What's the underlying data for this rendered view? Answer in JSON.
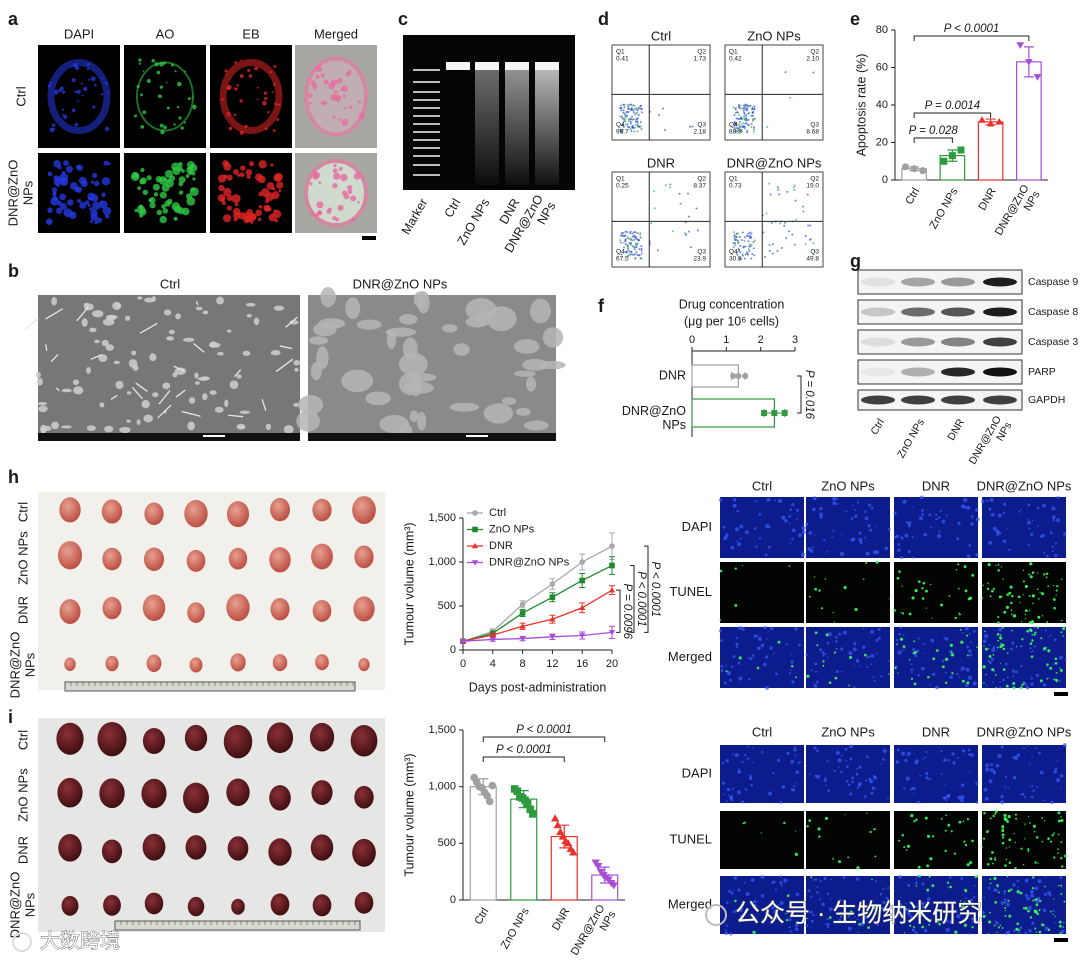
{
  "panel_labels": [
    "a",
    "b",
    "c",
    "d",
    "e",
    "f",
    "g",
    "h",
    "i"
  ],
  "panel_a": {
    "columns": [
      "DAPI",
      "AO",
      "EB",
      "Merged"
    ],
    "rows": [
      "Ctrl",
      [
        "DNR@ZnO",
        "NPs"
      ]
    ]
  },
  "panel_b": {
    "titles": [
      "Ctrl",
      "DNR@ZnO NPs"
    ]
  },
  "panel_c": {
    "lanes": [
      "Marker",
      "Ctrl",
      "ZnO NPs",
      "DNR",
      [
        "DNR@ZnO",
        "NPs"
      ]
    ]
  },
  "panel_d": {
    "plots": [
      {
        "title": "Ctrl",
        "quadrants": [
          {
            "name": "Q1",
            "value": "0.41"
          },
          {
            "name": "Q2",
            "value": "1.73"
          },
          {
            "name": "Q3",
            "value": "2.18"
          },
          {
            "name": "Q4",
            "value": "95.7"
          }
        ]
      },
      {
        "title": "ZnO NPs",
        "quadrants": [
          {
            "name": "Q1",
            "value": "0.42"
          },
          {
            "name": "Q2",
            "value": "2.10"
          },
          {
            "name": "Q3",
            "value": "8.68"
          },
          {
            "name": "Q4",
            "value": "88.8"
          }
        ]
      },
      {
        "title": "DNR",
        "quadrants": [
          {
            "name": "Q1",
            "value": "0.25"
          },
          {
            "name": "Q2",
            "value": "8.37"
          },
          {
            "name": "Q3",
            "value": "23.9"
          },
          {
            "name": "Q4",
            "value": "67.5"
          }
        ]
      },
      {
        "title": "DNR@ZnO NPs",
        "quadrants": [
          {
            "name": "Q1",
            "value": "0.73"
          },
          {
            "name": "Q2",
            "value": "19.0"
          },
          {
            "name": "Q3",
            "value": "49.8"
          },
          {
            "name": "Q4",
            "value": "30.5"
          }
        ]
      }
    ]
  },
  "panel_g": {
    "bands": [
      "Caspase 9",
      "Caspase 8",
      "Caspase 3",
      "PARP",
      "GAPDH"
    ],
    "lanes": [
      "Ctrl",
      "ZnO NPs",
      "DNR",
      [
        "DNR@ZnO",
        "NPs"
      ]
    ]
  },
  "panel_h": {
    "rows": [
      "Ctrl",
      "ZnO NPs",
      "DNR",
      [
        "DNR@ZnO",
        "NPs"
      ]
    ],
    "tunel_columns": [
      "Ctrl",
      "ZnO NPs",
      "DNR",
      "DNR@ZnO NPs"
    ],
    "tunel_rows": [
      "DAPI",
      "TUNEL",
      "Merged"
    ]
  },
  "panel_i": {
    "rows": [
      "Ctrl",
      "ZnO NPs",
      "DNR",
      [
        "DNR@ZnO",
        "NPs"
      ]
    ],
    "tunel_columns": [
      "Ctrl",
      "ZnO NPs",
      "DNR",
      "DNR@ZnO NPs"
    ],
    "tunel_rows": [
      "DAPI",
      "TUNEL",
      "Merged"
    ]
  },
  "watermarks": [
    "公众号 · 生物纳米研究",
    "大数跨境"
  ],
  "chart_data": [
    {
      "type": "bar",
      "ylabel": "Apoptosis rate (%)",
      "categories": [
        "Ctrl",
        "ZnO NPs",
        "DNR",
        [
          "DNR@ZnO",
          "NPs"
        ]
      ],
      "values": [
        6,
        13,
        31,
        63
      ],
      "errors": [
        1,
        3,
        1.5,
        8
      ],
      "points": [
        [
          7,
          6,
          5
        ],
        [
          10,
          13,
          16
        ],
        [
          32,
          30,
          31
        ],
        [
          72,
          63,
          55
        ]
      ],
      "colors": [
        "#a0a0a0",
        "#2e9a3e",
        "#e8322c",
        "#a64fd6"
      ],
      "ylim": [
        0,
        80
      ],
      "yticks": [
        0,
        20,
        40,
        60,
        80
      ],
      "annotations": [
        "P = 0.028",
        "P = 0.0014",
        "P < 0.0001"
      ]
    },
    {
      "type": "barh",
      "xlabel": [
        "Drug concentration",
        "(μg per 10⁶ cells)"
      ],
      "categories": [
        "DNR",
        [
          "DNR@ZnO",
          "NPs"
        ]
      ],
      "values": [
        1.35,
        2.4
      ],
      "errors": [
        0.2,
        0.3
      ],
      "points": [
        [
          1.2,
          1.35,
          1.55
        ],
        [
          2.1,
          2.4,
          2.7
        ]
      ],
      "colors": [
        "#a0a0a0",
        "#2e9a3e"
      ],
      "xlim": [
        0,
        3
      ],
      "xticks": [
        0,
        1,
        2,
        3
      ],
      "annotations": [
        "P = 0.016"
      ]
    },
    {
      "type": "line",
      "xlabel": "Days post-administration",
      "ylabel": "Tumour volume (mm³)",
      "x": [
        0,
        4,
        8,
        12,
        16,
        20
      ],
      "series": [
        {
          "name": "Ctrl",
          "color": "#a8a8a8",
          "values": [
            100,
            210,
            520,
            750,
            1000,
            1180
          ],
          "errors": [
            10,
            30,
            40,
            60,
            90,
            150
          ]
        },
        {
          "name": "ZnO NPs",
          "color": "#1f8a2e",
          "values": [
            100,
            190,
            420,
            600,
            790,
            960
          ],
          "errors": [
            10,
            25,
            40,
            50,
            80,
            100
          ]
        },
        {
          "name": "DNR",
          "color": "#e8322c",
          "values": [
            100,
            170,
            270,
            350,
            480,
            680
          ],
          "errors": [
            10,
            20,
            35,
            45,
            55,
            50
          ]
        },
        {
          "name": "DNR@ZnO NPs",
          "color": "#a64fd6",
          "values": [
            100,
            120,
            130,
            150,
            165,
            200
          ],
          "errors": [
            10,
            20,
            25,
            30,
            40,
            70
          ]
        }
      ],
      "xlim": [
        0,
        20
      ],
      "xticks": [
        0,
        4,
        8,
        12,
        16,
        20
      ],
      "ylim": [
        0,
        1500
      ],
      "yticks": [
        0,
        500,
        {
          "value": 1000,
          "label": "1,000"
        },
        {
          "value": 1500,
          "label": "1,500"
        }
      ],
      "legend": "upper left",
      "annotations": [
        "P < 0.0001",
        "P < 0.0001",
        "P = 0.0096"
      ]
    },
    {
      "type": "bar",
      "ylabel": "Tumour volume (mm³)",
      "categories": [
        "Ctrl",
        "ZnO NPs",
        "DNR",
        [
          "DNR@ZnO",
          "NPs"
        ]
      ],
      "values": [
        1000,
        890,
        560,
        220
      ],
      "errors": [
        70,
        75,
        100,
        70
      ],
      "points": [
        [
          1080,
          1040,
          1000,
          990,
          950,
          920,
          870,
          1010
        ],
        [
          980,
          960,
          910,
          900,
          880,
          850,
          800,
          760
        ],
        [
          720,
          660,
          600,
          560,
          520,
          500,
          450,
          420
        ],
        [
          330,
          300,
          250,
          220,
          200,
          180,
          150,
          130
        ]
      ],
      "colors": [
        "#a0a0a0",
        "#2e9a3e",
        "#e8322c",
        "#a64fd6"
      ],
      "ylim": [
        0,
        1500
      ],
      "yticks": [
        0,
        500,
        {
          "value": 1000,
          "label": "1,000"
        },
        {
          "value": 1500,
          "label": "1,500"
        }
      ],
      "annotations": [
        "P < 0.0001",
        "P < 0.0001"
      ]
    }
  ]
}
